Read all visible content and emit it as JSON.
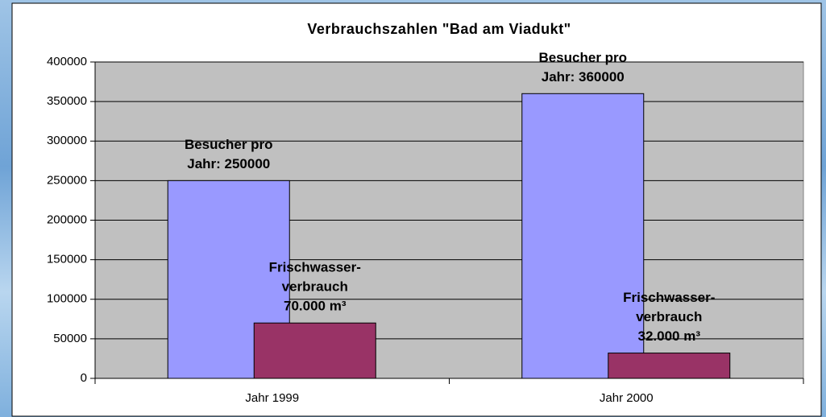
{
  "chart_data": {
    "type": "bar",
    "title": "Verbrauchszahlen \"Bad am Viadukt\"",
    "categories": [
      "Jahr 1999",
      "Jahr 2000"
    ],
    "series": [
      {
        "color": "#9999ff",
        "values": [
          250000,
          360000
        ],
        "value_labels": [
          [
            "Besucher pro",
            "Jahr: 250000"
          ],
          [
            "Besucher pro",
            "Jahr: 360000"
          ]
        ]
      },
      {
        "color": "#993366",
        "values": [
          70000,
          32000
        ],
        "value_labels": [
          [
            "Frischwasser-",
            "verbrauch",
            "70.000 m³"
          ],
          [
            "Frischwasser-",
            "verbrauch",
            "32.000 m³"
          ]
        ]
      }
    ],
    "ylim": [
      0,
      400000
    ],
    "yticks": [
      0,
      50000,
      100000,
      150000,
      200000,
      250000,
      300000,
      350000,
      400000
    ],
    "grid": true
  }
}
